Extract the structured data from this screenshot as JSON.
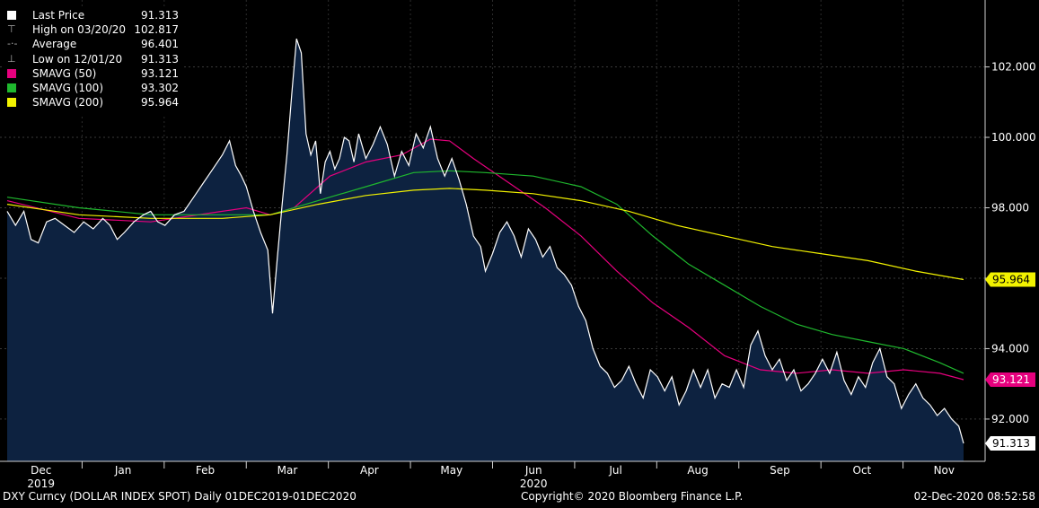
{
  "legend": [
    {
      "label": "Last Price",
      "value": "91.313",
      "color": "#ffffff",
      "glyph": "square"
    },
    {
      "label": "High on 03/20/20",
      "value": "102.817",
      "color": "#aaaaaa",
      "glyph": "high"
    },
    {
      "label": "Average",
      "value": "96.401",
      "color": "#aaaaaa",
      "glyph": "avg"
    },
    {
      "label": "Low on 12/01/20",
      "value": "91.313",
      "color": "#aaaaaa",
      "glyph": "low"
    },
    {
      "label": "SMAVG (50)",
      "value": "93.121",
      "color": "#e6007e",
      "glyph": "square"
    },
    {
      "label": "SMAVG (100)",
      "value": "93.302",
      "color": "#1fb82e",
      "glyph": "square"
    },
    {
      "label": "SMAVG (200)",
      "value": "95.964",
      "color": "#f2f200",
      "glyph": "square"
    }
  ],
  "footer": {
    "left": "DXY Curncy (DOLLAR INDEX SPOT)  Daily 01DEC2019-01DEC2020",
    "center": "Copyright© 2020 Bloomberg Finance L.P.",
    "right": "02-Dec-2020 08:52:58"
  },
  "chart_data": {
    "type": "area",
    "ylim": [
      90.8,
      103.9
    ],
    "yticks": [
      "92.000",
      "94.000",
      "96.000",
      "98.000",
      "100.000",
      "102.000"
    ],
    "months": [
      {
        "label": "Dec",
        "sub": "2019"
      },
      {
        "label": "Jan",
        "sub": ""
      },
      {
        "label": "Feb",
        "sub": ""
      },
      {
        "label": "Mar",
        "sub": ""
      },
      {
        "label": "Apr",
        "sub": ""
      },
      {
        "label": "May",
        "sub": ""
      },
      {
        "label": "Jun",
        "sub": "2020"
      },
      {
        "label": "Jul",
        "sub": ""
      },
      {
        "label": "Aug",
        "sub": ""
      },
      {
        "label": "Sep",
        "sub": ""
      },
      {
        "label": "Oct",
        "sub": ""
      },
      {
        "label": "Nov",
        "sub": ""
      }
    ],
    "end_labels": [
      {
        "value": "95.964",
        "series": "SMAVG (200)",
        "bg": "#f2f200",
        "fg": "#000000"
      },
      {
        "value": "93.121",
        "series": "SMAVG (50)",
        "bg": "#e6007e",
        "fg": "#ffffff"
      },
      {
        "value": "91.313",
        "series": "Last Price",
        "bg": "#ffffff",
        "fg": "#000000"
      }
    ],
    "series": [
      {
        "name": "Last Price",
        "color": "#ffffff",
        "fill": "#0d2240",
        "points": [
          [
            0,
            97.9
          ],
          [
            0.035,
            97.5
          ],
          [
            0.07,
            97.9
          ],
          [
            0.1,
            97.1
          ],
          [
            0.13,
            97.0
          ],
          [
            0.165,
            97.6
          ],
          [
            0.2,
            97.7
          ],
          [
            0.24,
            97.5
          ],
          [
            0.28,
            97.3
          ],
          [
            0.32,
            97.6
          ],
          [
            0.36,
            97.4
          ],
          [
            0.4,
            97.7
          ],
          [
            0.43,
            97.5
          ],
          [
            0.46,
            97.1
          ],
          [
            0.49,
            97.3
          ],
          [
            0.53,
            97.6
          ],
          [
            0.57,
            97.8
          ],
          [
            0.6,
            97.9
          ],
          [
            0.63,
            97.6
          ],
          [
            0.66,
            97.5
          ],
          [
            0.7,
            97.8
          ],
          [
            0.74,
            97.9
          ],
          [
            0.78,
            98.3
          ],
          [
            0.82,
            98.7
          ],
          [
            0.86,
            99.1
          ],
          [
            0.9,
            99.5
          ],
          [
            0.93,
            99.9
          ],
          [
            0.955,
            99.2
          ],
          [
            0.98,
            98.9
          ],
          [
            1.0,
            98.6
          ],
          [
            1.03,
            97.9
          ],
          [
            1.06,
            97.3
          ],
          [
            1.09,
            96.8
          ],
          [
            1.11,
            95.0
          ],
          [
            1.13,
            96.6
          ],
          [
            1.15,
            98.1
          ],
          [
            1.17,
            99.5
          ],
          [
            1.19,
            101.2
          ],
          [
            1.21,
            102.8
          ],
          [
            1.23,
            102.4
          ],
          [
            1.25,
            100.1
          ],
          [
            1.27,
            99.5
          ],
          [
            1.29,
            99.9
          ],
          [
            1.31,
            98.4
          ],
          [
            1.33,
            99.3
          ],
          [
            1.35,
            99.6
          ],
          [
            1.37,
            99.1
          ],
          [
            1.39,
            99.4
          ],
          [
            1.41,
            100.0
          ],
          [
            1.43,
            99.9
          ],
          [
            1.45,
            99.3
          ],
          [
            1.47,
            100.1
          ],
          [
            1.5,
            99.4
          ],
          [
            1.53,
            99.8
          ],
          [
            1.56,
            100.3
          ],
          [
            1.59,
            99.8
          ],
          [
            1.62,
            98.9
          ],
          [
            1.65,
            99.6
          ],
          [
            1.68,
            99.2
          ],
          [
            1.71,
            100.1
          ],
          [
            1.74,
            99.7
          ],
          [
            1.77,
            100.3
          ],
          [
            1.8,
            99.4
          ],
          [
            1.83,
            98.9
          ],
          [
            1.86,
            99.4
          ],
          [
            1.89,
            98.8
          ],
          [
            1.92,
            98.1
          ],
          [
            1.95,
            97.2
          ],
          [
            1.98,
            96.9
          ],
          [
            2.0,
            96.2
          ],
          [
            2.03,
            96.7
          ],
          [
            2.06,
            97.3
          ],
          [
            2.09,
            97.6
          ],
          [
            2.12,
            97.2
          ],
          [
            2.15,
            96.6
          ],
          [
            2.18,
            97.4
          ],
          [
            2.21,
            97.1
          ],
          [
            2.24,
            96.6
          ],
          [
            2.27,
            96.9
          ],
          [
            2.3,
            96.3
          ],
          [
            2.33,
            96.1
          ],
          [
            2.36,
            95.8
          ],
          [
            2.39,
            95.2
          ],
          [
            2.42,
            94.8
          ],
          [
            2.45,
            94.0
          ],
          [
            2.48,
            93.5
          ],
          [
            2.51,
            93.3
          ],
          [
            2.54,
            92.9
          ],
          [
            2.57,
            93.1
          ],
          [
            2.6,
            93.5
          ],
          [
            2.63,
            93.0
          ],
          [
            2.66,
            92.6
          ],
          [
            2.69,
            93.4
          ],
          [
            2.72,
            93.2
          ],
          [
            2.75,
            92.8
          ],
          [
            2.78,
            93.2
          ],
          [
            2.81,
            92.4
          ],
          [
            2.84,
            92.8
          ],
          [
            2.87,
            93.4
          ],
          [
            2.9,
            92.9
          ],
          [
            2.93,
            93.4
          ],
          [
            2.96,
            92.6
          ],
          [
            2.99,
            93.0
          ],
          [
            3.02,
            92.9
          ],
          [
            3.05,
            93.4
          ],
          [
            3.08,
            92.9
          ],
          [
            3.11,
            94.1
          ],
          [
            3.14,
            94.5
          ],
          [
            3.17,
            93.8
          ],
          [
            3.2,
            93.4
          ],
          [
            3.23,
            93.7
          ],
          [
            3.26,
            93.1
          ],
          [
            3.29,
            93.4
          ],
          [
            3.32,
            92.8
          ],
          [
            3.35,
            93.0
          ],
          [
            3.38,
            93.3
          ],
          [
            3.41,
            93.7
          ],
          [
            3.44,
            93.3
          ],
          [
            3.47,
            93.9
          ],
          [
            3.5,
            93.1
          ],
          [
            3.53,
            92.7
          ],
          [
            3.56,
            93.2
          ],
          [
            3.59,
            92.9
          ],
          [
            3.62,
            93.6
          ],
          [
            3.65,
            94.0
          ],
          [
            3.68,
            93.2
          ],
          [
            3.71,
            93.0
          ],
          [
            3.74,
            92.3
          ],
          [
            3.77,
            92.7
          ],
          [
            3.8,
            93.0
          ],
          [
            3.83,
            92.6
          ],
          [
            3.86,
            92.4
          ],
          [
            3.89,
            92.1
          ],
          [
            3.92,
            92.3
          ],
          [
            3.95,
            92.0
          ],
          [
            3.98,
            91.8
          ],
          [
            4.0,
            91.31
          ]
        ]
      },
      {
        "name": "SMAVG (50)",
        "color": "#e6007e",
        "points": [
          [
            0,
            98.2
          ],
          [
            0.3,
            97.7
          ],
          [
            0.6,
            97.6
          ],
          [
            0.9,
            97.9
          ],
          [
            1.0,
            98.0
          ],
          [
            1.1,
            97.8
          ],
          [
            1.2,
            98.0
          ],
          [
            1.35,
            98.9
          ],
          [
            1.5,
            99.3
          ],
          [
            1.65,
            99.5
          ],
          [
            1.77,
            99.95
          ],
          [
            1.85,
            99.9
          ],
          [
            1.95,
            99.4
          ],
          [
            2.1,
            98.7
          ],
          [
            2.25,
            98.0
          ],
          [
            2.4,
            97.2
          ],
          [
            2.55,
            96.2
          ],
          [
            2.7,
            95.3
          ],
          [
            2.85,
            94.6
          ],
          [
            3.0,
            93.8
          ],
          [
            3.15,
            93.4
          ],
          [
            3.3,
            93.3
          ],
          [
            3.45,
            93.4
          ],
          [
            3.6,
            93.3
          ],
          [
            3.75,
            93.4
          ],
          [
            3.9,
            93.3
          ],
          [
            4.0,
            93.12
          ]
        ]
      },
      {
        "name": "SMAVG (100)",
        "color": "#1fb82e",
        "points": [
          [
            0,
            98.3
          ],
          [
            0.3,
            98.0
          ],
          [
            0.6,
            97.8
          ],
          [
            0.9,
            97.8
          ],
          [
            1.1,
            97.8
          ],
          [
            1.3,
            98.2
          ],
          [
            1.5,
            98.6
          ],
          [
            1.7,
            99.0
          ],
          [
            1.85,
            99.05
          ],
          [
            2.0,
            99.0
          ],
          [
            2.2,
            98.9
          ],
          [
            2.4,
            98.6
          ],
          [
            2.55,
            98.1
          ],
          [
            2.7,
            97.2
          ],
          [
            2.85,
            96.4
          ],
          [
            3.0,
            95.8
          ],
          [
            3.15,
            95.2
          ],
          [
            3.3,
            94.7
          ],
          [
            3.45,
            94.4
          ],
          [
            3.6,
            94.2
          ],
          [
            3.75,
            94.0
          ],
          [
            3.9,
            93.6
          ],
          [
            4.0,
            93.3
          ]
        ]
      },
      {
        "name": "SMAVG (200)",
        "color": "#f2f200",
        "points": [
          [
            0,
            98.1
          ],
          [
            0.3,
            97.8
          ],
          [
            0.6,
            97.7
          ],
          [
            0.9,
            97.7
          ],
          [
            1.1,
            97.8
          ],
          [
            1.3,
            98.1
          ],
          [
            1.5,
            98.35
          ],
          [
            1.7,
            98.5
          ],
          [
            1.85,
            98.55
          ],
          [
            2.0,
            98.5
          ],
          [
            2.2,
            98.4
          ],
          [
            2.4,
            98.2
          ],
          [
            2.6,
            97.9
          ],
          [
            2.8,
            97.5
          ],
          [
            3.0,
            97.2
          ],
          [
            3.2,
            96.9
          ],
          [
            3.4,
            96.7
          ],
          [
            3.6,
            96.5
          ],
          [
            3.8,
            96.2
          ],
          [
            4.0,
            95.96
          ]
        ]
      }
    ]
  }
}
